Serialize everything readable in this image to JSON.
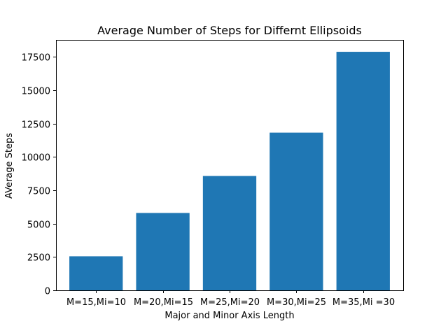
{
  "chart_data": {
    "type": "bar",
    "title": "Average Number of Steps for Differnt Ellipsoids",
    "xlabel": "Major and Minor Axis Length",
    "ylabel": "AVerage Steps",
    "categories": [
      "M=15,Mi=10",
      "M=20,Mi=15",
      "M=25,Mi=20",
      "M=30,Mi=25",
      "M=35,Mi =30"
    ],
    "values": [
      2550,
      5800,
      8570,
      11820,
      17880
    ],
    "ylim": [
      0,
      18774
    ],
    "yticks": [
      0,
      2500,
      5000,
      7500,
      10000,
      12500,
      15000,
      17500
    ],
    "ytick_labels": [
      "0",
      "2500",
      "5000",
      "7500",
      "10000",
      "12500",
      "15000",
      "17500"
    ],
    "bar_color": "#1f77b4",
    "grid": false,
    "legend": "none"
  }
}
